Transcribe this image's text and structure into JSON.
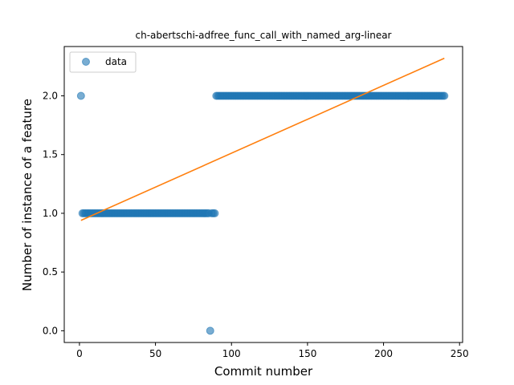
{
  "chart_data": {
    "type": "scatter",
    "title": "ch-abertschi-adfree_func_call_with_named_arg-linear",
    "xlabel": "Commit number",
    "ylabel": "Number of instance of a feature",
    "xlim": [
      -10,
      252
    ],
    "ylim": [
      -0.1,
      2.42
    ],
    "xticks": [
      0,
      50,
      100,
      150,
      200,
      250
    ],
    "xtick_labels": [
      "0",
      "50",
      "100",
      "150",
      "200",
      "250"
    ],
    "yticks": [
      0.0,
      0.5,
      1.0,
      1.5,
      2.0
    ],
    "ytick_labels": [
      "0.0",
      "0.5",
      "1.0",
      "1.5",
      "2.0"
    ],
    "grid": false,
    "legend": {
      "position": "top-left",
      "entries": [
        "data"
      ]
    },
    "colors": {
      "data": "#1f77b4",
      "fit": "#ff7f0e"
    },
    "series": [
      {
        "name": "data",
        "kind": "points",
        "runs": [
          {
            "x_start": 1,
            "x_end": 1,
            "y": 2
          },
          {
            "x_start": 2,
            "x_end": 85,
            "y": 1
          },
          {
            "x_start": 86,
            "x_end": 86,
            "y": 0
          },
          {
            "x_start": 87,
            "x_end": 89,
            "y": 1
          },
          {
            "x_start": 90,
            "x_end": 240,
            "y": 2
          }
        ]
      },
      {
        "kind": "line",
        "x": [
          1,
          240
        ],
        "y": [
          0.94,
          2.32
        ]
      }
    ]
  }
}
